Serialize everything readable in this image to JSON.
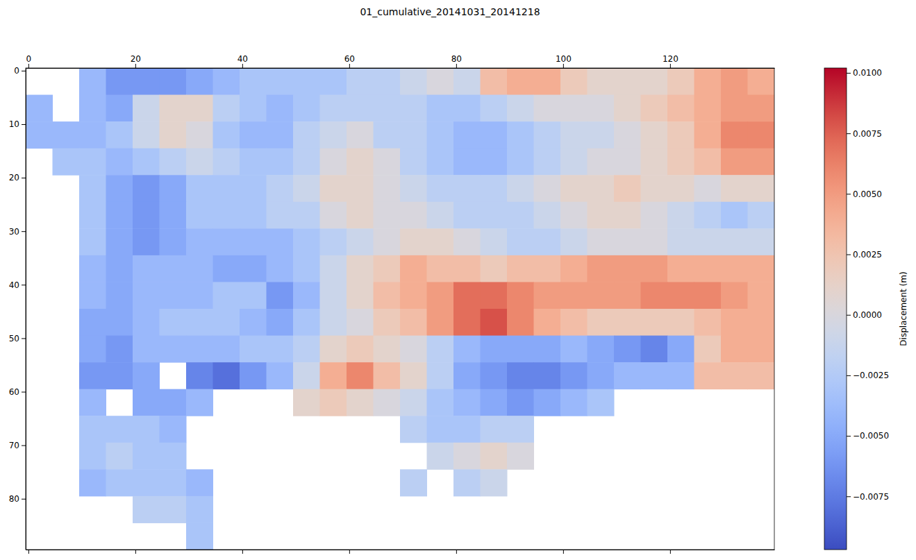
{
  "chart_data": {
    "type": "heatmap",
    "title": "01_cumulative_20141031_20141218",
    "x_bins": [
      -0.5,
      4.5,
      9.5,
      14.5,
      19.5,
      24.5,
      29.5,
      34.5,
      39.5,
      44.5,
      49.5,
      54.5,
      59.5,
      64.5,
      69.5,
      74.5,
      79.5,
      84.5,
      89.5,
      94.5,
      99.5,
      104.5,
      109.5,
      114.5,
      119.5,
      124.5,
      129.5,
      134.5,
      139.5
    ],
    "y_bins": [
      -0.5,
      4.5,
      9.5,
      14.5,
      19.5,
      24.5,
      29.5,
      34.5,
      39.5,
      44.5,
      49.5,
      54.5,
      59.5,
      64.5,
      69.5,
      74.5,
      79.5,
      84.5,
      89.5
    ],
    "xlim": [
      -0.5,
      139.5
    ],
    "ylim": [
      89.5,
      -0.5
    ],
    "xticks": [
      0,
      20,
      40,
      60,
      80,
      100,
      120
    ],
    "yticks": [
      0,
      10,
      20,
      30,
      40,
      50,
      60,
      70,
      80
    ],
    "cells": [
      [
        null,
        null,
        -0.004,
        -0.006,
        -0.006,
        -0.006,
        -0.005,
        -0.004,
        -0.003,
        -0.003,
        -0.003,
        -0.003,
        -0.002,
        -0.002,
        -0.001,
        0,
        -0.001,
        0.003,
        0.004,
        0.004,
        0.002,
        0.001,
        0.001,
        0.001,
        0.002,
        0.004,
        0.005,
        0.004
      ],
      [
        -0.004,
        null,
        -0.004,
        -0.005,
        -0.001,
        0.001,
        0.001,
        -0.002,
        -0.003,
        -0.004,
        -0.003,
        -0.002,
        -0.002,
        -0.002,
        -0.002,
        -0.003,
        -0.003,
        -0.002,
        -0.001,
        0,
        0,
        0,
        0.001,
        0.002,
        0.003,
        0.004,
        0.005,
        0.005
      ],
      [
        -0.004,
        -0.004,
        -0.004,
        -0.003,
        -0.001,
        0.001,
        0,
        -0.003,
        -0.004,
        -0.004,
        -0.002,
        -0.001,
        0,
        -0.002,
        -0.002,
        -0.003,
        -0.004,
        -0.004,
        -0.003,
        -0.002,
        -0.001,
        -0.001,
        0,
        0.001,
        0.002,
        0.004,
        0.006,
        0.006
      ],
      [
        null,
        -0.003,
        -0.003,
        -0.004,
        -0.003,
        -0.002,
        -0.001,
        -0.002,
        -0.003,
        -0.003,
        -0.002,
        0,
        0.001,
        0,
        -0.002,
        -0.003,
        -0.004,
        -0.004,
        -0.003,
        -0.002,
        -0.001,
        0,
        0,
        0.001,
        0.002,
        0.003,
        0.005,
        0.005
      ],
      [
        null,
        null,
        -0.003,
        -0.005,
        -0.006,
        -0.005,
        -0.003,
        -0.003,
        -0.003,
        -0.002,
        -0.001,
        0.001,
        0.001,
        0,
        -0.001,
        -0.002,
        -0.002,
        -0.002,
        -0.001,
        0,
        0.001,
        0.001,
        0.002,
        0.001,
        0.001,
        0,
        0.001,
        0.001
      ],
      [
        null,
        null,
        -0.003,
        -0.005,
        -0.006,
        -0.005,
        -0.003,
        -0.003,
        -0.003,
        -0.002,
        -0.002,
        0,
        0.001,
        0,
        0,
        -0.001,
        -0.002,
        -0.002,
        -0.002,
        -0.001,
        0,
        0.001,
        0.001,
        0,
        -0.001,
        -0.002,
        -0.003,
        -0.002
      ],
      [
        null,
        null,
        -0.003,
        -0.005,
        -0.006,
        -0.005,
        -0.004,
        -0.004,
        -0.004,
        -0.004,
        -0.003,
        -0.002,
        -0.001,
        0,
        0.001,
        0.001,
        0,
        -0.001,
        -0.002,
        -0.002,
        -0.001,
        0,
        0,
        0,
        -0.001,
        -0.001,
        -0.001,
        -0.001
      ],
      [
        null,
        null,
        -0.004,
        -0.005,
        -0.004,
        -0.004,
        -0.004,
        -0.005,
        -0.005,
        -0.004,
        -0.003,
        -0.001,
        0.001,
        0.002,
        0.004,
        0.003,
        0.003,
        0.002,
        0.003,
        0.003,
        0.004,
        0.005,
        0.005,
        0.005,
        0.004,
        0.004,
        0.004,
        0.004
      ],
      [
        null,
        null,
        -0.004,
        -0.005,
        -0.004,
        -0.004,
        -0.004,
        -0.003,
        -0.003,
        -0.006,
        -0.004,
        -0.001,
        0.001,
        0.003,
        0.004,
        0.005,
        0.007,
        0.007,
        0.006,
        0.005,
        0.005,
        0.005,
        0.005,
        0.006,
        0.006,
        0.006,
        0.005,
        0.004
      ],
      [
        null,
        null,
        -0.005,
        -0.005,
        -0.004,
        -0.003,
        -0.003,
        -0.003,
        -0.004,
        -0.005,
        -0.003,
        -0.001,
        0,
        0.002,
        0.003,
        0.005,
        0.007,
        0.008,
        0.006,
        0.004,
        0.003,
        0.002,
        0.002,
        0.002,
        0.002,
        0.003,
        0.004,
        0.004
      ],
      [
        null,
        null,
        -0.005,
        -0.006,
        -0.004,
        -0.004,
        -0.004,
        -0.004,
        -0.003,
        -0.003,
        -0.002,
        0.001,
        0.002,
        0.001,
        0,
        -0.002,
        -0.004,
        -0.005,
        -0.005,
        -0.005,
        -0.004,
        -0.005,
        -0.006,
        -0.007,
        -0.005,
        0.002,
        0.004,
        0.004
      ],
      [
        null,
        null,
        -0.006,
        -0.006,
        -0.005,
        null,
        -0.007,
        -0.008,
        -0.006,
        -0.004,
        -0.001,
        0.004,
        0.006,
        0.003,
        0.001,
        -0.002,
        -0.005,
        -0.006,
        -0.007,
        -0.007,
        -0.006,
        -0.005,
        -0.004,
        -0.004,
        -0.004,
        0.003,
        0.003,
        0.003
      ],
      [
        null,
        null,
        -0.004,
        null,
        -0.005,
        -0.005,
        -0.004,
        null,
        null,
        null,
        0.001,
        0.002,
        0.001,
        0,
        -0.001,
        -0.003,
        -0.004,
        -0.005,
        -0.006,
        -0.005,
        -0.004,
        -0.003,
        null,
        null,
        null,
        null,
        null,
        null
      ],
      [
        null,
        null,
        -0.003,
        -0.003,
        -0.003,
        -0.004,
        null,
        null,
        null,
        null,
        null,
        null,
        null,
        null,
        -0.002,
        -0.003,
        -0.003,
        -0.002,
        -0.002,
        null,
        null,
        null,
        null,
        null,
        null,
        null,
        null,
        null
      ],
      [
        null,
        null,
        -0.003,
        -0.002,
        -0.003,
        -0.003,
        null,
        null,
        null,
        null,
        null,
        null,
        null,
        null,
        null,
        -0.001,
        0,
        0.001,
        0,
        null,
        null,
        null,
        null,
        null,
        null,
        null,
        null,
        null
      ],
      [
        null,
        null,
        -0.004,
        -0.003,
        -0.003,
        -0.003,
        -0.004,
        null,
        null,
        null,
        null,
        null,
        null,
        null,
        -0.002,
        null,
        -0.002,
        -0.001,
        null,
        null,
        null,
        null,
        null,
        null,
        null,
        null,
        null,
        null
      ],
      [
        null,
        null,
        null,
        null,
        -0.002,
        -0.002,
        -0.003,
        null,
        null,
        null,
        null,
        null,
        null,
        null,
        null,
        null,
        null,
        null,
        null,
        null,
        null,
        null,
        null,
        null,
        null,
        null,
        null,
        null
      ],
      [
        null,
        null,
        null,
        null,
        null,
        null,
        -0.003,
        null,
        null,
        null,
        null,
        null,
        null,
        null,
        null,
        null,
        null,
        null,
        null,
        null,
        null,
        null,
        null,
        null,
        null,
        null,
        null,
        null
      ]
    ],
    "colorbar": {
      "label": "Displacement (m)",
      "range": [
        -0.0097,
        0.0102
      ],
      "ticks": [
        {
          "value": -0.0075,
          "label": "−0.0075"
        },
        {
          "value": -0.005,
          "label": "−0.0050"
        },
        {
          "value": -0.0025,
          "label": "−0.0025"
        },
        {
          "value": 0,
          "label": "0.0000"
        },
        {
          "value": 0.0025,
          "label": "0.0025"
        },
        {
          "value": 0.005,
          "label": "0.0050"
        },
        {
          "value": 0.0075,
          "label": "0.0075"
        },
        {
          "value": 0.01,
          "label": "0.0100"
        }
      ]
    }
  }
}
